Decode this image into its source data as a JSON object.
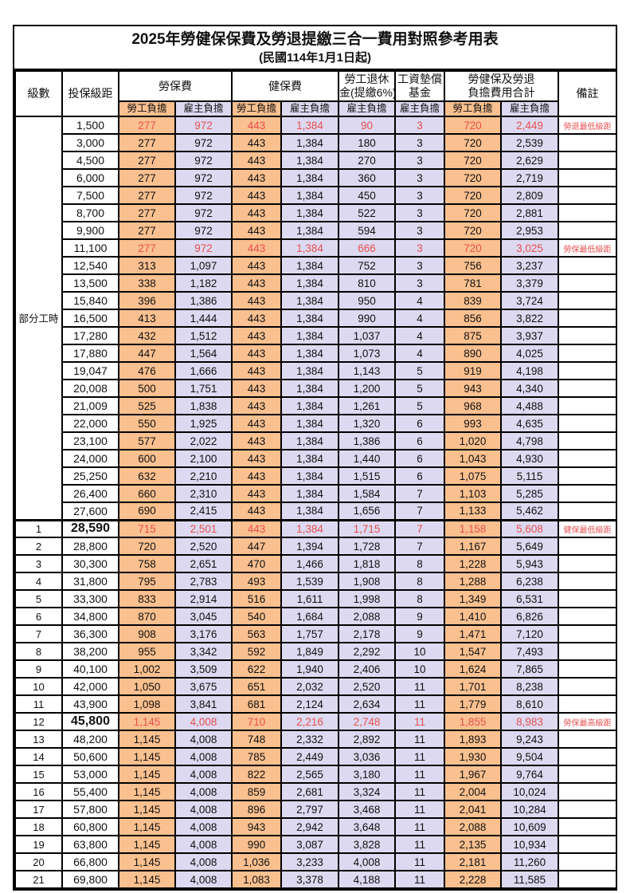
{
  "title": "2025年勞健保保費及勞退提繳三合一費用對照參考用表",
  "subtitle": "(民國114年1月1日起)",
  "header": {
    "level": "級數",
    "bracket": "投保級距",
    "labor_group": "勞保費",
    "health_group": "健保費",
    "pension_line1": "勞工退休",
    "pension_line2": "金(提繳6%)",
    "wagefund_line1": "工資墊償",
    "wagefund_line2": "基金",
    "total_line1": "勞健保及勞退",
    "total_line2": "負擔費用合計",
    "remark": "備註",
    "employee_label": "勞工負擔",
    "employer_label": "雇主負擔"
  },
  "colors": {
    "employee_bg": "#FAC08F",
    "employer_bg": "#DCD9F0",
    "highlight_red": "#E85050",
    "border": "#000000"
  },
  "part_time_label": "部分工時",
  "column_keys": [
    "labor_employee",
    "labor_employer",
    "health_employee",
    "health_employer",
    "pension_employer",
    "wagefund_employer",
    "total_employee",
    "total_employer"
  ],
  "rows": [
    {
      "level": "",
      "bracket": "1,500",
      "values": [
        "277",
        "972",
        "443",
        "1,384",
        "90",
        "3",
        "720",
        "2,449"
      ],
      "remark": "勞退最低級距",
      "red": true,
      "bold": false,
      "thick_top": false
    },
    {
      "level": "",
      "bracket": "3,000",
      "values": [
        "277",
        "972",
        "443",
        "1,384",
        "180",
        "3",
        "720",
        "2,539"
      ],
      "remark": "",
      "red": false,
      "bold": false,
      "thick_top": false
    },
    {
      "level": "",
      "bracket": "4,500",
      "values": [
        "277",
        "972",
        "443",
        "1,384",
        "270",
        "3",
        "720",
        "2,629"
      ],
      "remark": "",
      "red": false,
      "bold": false,
      "thick_top": false
    },
    {
      "level": "",
      "bracket": "6,000",
      "values": [
        "277",
        "972",
        "443",
        "1,384",
        "360",
        "3",
        "720",
        "2,719"
      ],
      "remark": "",
      "red": false,
      "bold": false,
      "thick_top": false
    },
    {
      "level": "",
      "bracket": "7,500",
      "values": [
        "277",
        "972",
        "443",
        "1,384",
        "450",
        "3",
        "720",
        "2,809"
      ],
      "remark": "",
      "red": false,
      "bold": false,
      "thick_top": false
    },
    {
      "level": "",
      "bracket": "8,700",
      "values": [
        "277",
        "972",
        "443",
        "1,384",
        "522",
        "3",
        "720",
        "2,881"
      ],
      "remark": "",
      "red": false,
      "bold": false,
      "thick_top": false
    },
    {
      "level": "",
      "bracket": "9,900",
      "values": [
        "277",
        "972",
        "443",
        "1,384",
        "594",
        "3",
        "720",
        "2,953"
      ],
      "remark": "",
      "red": false,
      "bold": false,
      "thick_top": false
    },
    {
      "level": "",
      "bracket": "11,100",
      "values": [
        "277",
        "972",
        "443",
        "1,384",
        "666",
        "3",
        "720",
        "3,025"
      ],
      "remark": "勞保最低級距",
      "red": true,
      "bold": false,
      "thick_top": false
    },
    {
      "level": "",
      "bracket": "12,540",
      "values": [
        "313",
        "1,097",
        "443",
        "1,384",
        "752",
        "3",
        "756",
        "3,237"
      ],
      "remark": "",
      "red": false,
      "bold": false,
      "thick_top": false
    },
    {
      "level": "",
      "bracket": "13,500",
      "values": [
        "338",
        "1,182",
        "443",
        "1,384",
        "810",
        "3",
        "781",
        "3,379"
      ],
      "remark": "",
      "red": false,
      "bold": false,
      "thick_top": false
    },
    {
      "level": "",
      "bracket": "15,840",
      "values": [
        "396",
        "1,386",
        "443",
        "1,384",
        "950",
        "4",
        "839",
        "3,724"
      ],
      "remark": "",
      "red": false,
      "bold": false,
      "thick_top": false
    },
    {
      "level": "",
      "bracket": "16,500",
      "values": [
        "413",
        "1,444",
        "443",
        "1,384",
        "990",
        "4",
        "856",
        "3,822"
      ],
      "remark": "",
      "red": false,
      "bold": false,
      "thick_top": false
    },
    {
      "level": "",
      "bracket": "17,280",
      "values": [
        "432",
        "1,512",
        "443",
        "1,384",
        "1,037",
        "4",
        "875",
        "3,937"
      ],
      "remark": "",
      "red": false,
      "bold": false,
      "thick_top": false
    },
    {
      "level": "",
      "bracket": "17,880",
      "values": [
        "447",
        "1,564",
        "443",
        "1,384",
        "1,073",
        "4",
        "890",
        "4,025"
      ],
      "remark": "",
      "red": false,
      "bold": false,
      "thick_top": false
    },
    {
      "level": "",
      "bracket": "19,047",
      "values": [
        "476",
        "1,666",
        "443",
        "1,384",
        "1,143",
        "5",
        "919",
        "4,198"
      ],
      "remark": "",
      "red": false,
      "bold": false,
      "thick_top": false
    },
    {
      "level": "",
      "bracket": "20,008",
      "values": [
        "500",
        "1,751",
        "443",
        "1,384",
        "1,200",
        "5",
        "943",
        "4,340"
      ],
      "remark": "",
      "red": false,
      "bold": false,
      "thick_top": false
    },
    {
      "level": "",
      "bracket": "21,009",
      "values": [
        "525",
        "1,838",
        "443",
        "1,384",
        "1,261",
        "5",
        "968",
        "4,488"
      ],
      "remark": "",
      "red": false,
      "bold": false,
      "thick_top": false
    },
    {
      "level": "",
      "bracket": "22,000",
      "values": [
        "550",
        "1,925",
        "443",
        "1,384",
        "1,320",
        "6",
        "993",
        "4,635"
      ],
      "remark": "",
      "red": false,
      "bold": false,
      "thick_top": false
    },
    {
      "level": "",
      "bracket": "23,100",
      "values": [
        "577",
        "2,022",
        "443",
        "1,384",
        "1,386",
        "6",
        "1,020",
        "4,798"
      ],
      "remark": "",
      "red": false,
      "bold": false,
      "thick_top": false
    },
    {
      "level": "",
      "bracket": "24,000",
      "values": [
        "600",
        "2,100",
        "443",
        "1,384",
        "1,440",
        "6",
        "1,043",
        "4,930"
      ],
      "remark": "",
      "red": false,
      "bold": false,
      "thick_top": false
    },
    {
      "level": "",
      "bracket": "25,250",
      "values": [
        "632",
        "2,210",
        "443",
        "1,384",
        "1,515",
        "6",
        "1,075",
        "5,115"
      ],
      "remark": "",
      "red": false,
      "bold": false,
      "thick_top": false
    },
    {
      "level": "",
      "bracket": "26,400",
      "values": [
        "660",
        "2,310",
        "443",
        "1,384",
        "1,584",
        "7",
        "1,103",
        "5,285"
      ],
      "remark": "",
      "red": false,
      "bold": false,
      "thick_top": false
    },
    {
      "level": "",
      "bracket": "27,600",
      "values": [
        "690",
        "2,415",
        "443",
        "1,384",
        "1,656",
        "7",
        "1,133",
        "5,462"
      ],
      "remark": "",
      "red": false,
      "bold": false,
      "thick_top": false
    },
    {
      "level": "1",
      "bracket": "28,590",
      "values": [
        "715",
        "2,501",
        "443",
        "1,384",
        "1,715",
        "7",
        "1,158",
        "5,608"
      ],
      "remark": "健保最低級距",
      "red": true,
      "bold": true,
      "thick_top": true
    },
    {
      "level": "2",
      "bracket": "28,800",
      "values": [
        "720",
        "2,520",
        "447",
        "1,394",
        "1,728",
        "7",
        "1,167",
        "5,649"
      ],
      "remark": "",
      "red": false,
      "bold": false,
      "thick_top": false
    },
    {
      "level": "3",
      "bracket": "30,300",
      "values": [
        "758",
        "2,651",
        "470",
        "1,466",
        "1,818",
        "8",
        "1,228",
        "5,943"
      ],
      "remark": "",
      "red": false,
      "bold": false,
      "thick_top": false
    },
    {
      "level": "4",
      "bracket": "31,800",
      "values": [
        "795",
        "2,783",
        "493",
        "1,539",
        "1,908",
        "8",
        "1,288",
        "6,238"
      ],
      "remark": "",
      "red": false,
      "bold": false,
      "thick_top": false
    },
    {
      "level": "5",
      "bracket": "33,300",
      "values": [
        "833",
        "2,914",
        "516",
        "1,611",
        "1,998",
        "8",
        "1,349",
        "6,531"
      ],
      "remark": "",
      "red": false,
      "bold": false,
      "thick_top": false
    },
    {
      "level": "6",
      "bracket": "34,800",
      "values": [
        "870",
        "3,045",
        "540",
        "1,684",
        "2,088",
        "9",
        "1,410",
        "6,826"
      ],
      "remark": "",
      "red": false,
      "bold": false,
      "thick_top": false
    },
    {
      "level": "7",
      "bracket": "36,300",
      "values": [
        "908",
        "3,176",
        "563",
        "1,757",
        "2,178",
        "9",
        "1,471",
        "7,120"
      ],
      "remark": "",
      "red": false,
      "bold": false,
      "thick_top": false
    },
    {
      "level": "8",
      "bracket": "38,200",
      "values": [
        "955",
        "3,342",
        "592",
        "1,849",
        "2,292",
        "10",
        "1,547",
        "7,493"
      ],
      "remark": "",
      "red": false,
      "bold": false,
      "thick_top": false
    },
    {
      "level": "9",
      "bracket": "40,100",
      "values": [
        "1,002",
        "3,509",
        "622",
        "1,940",
        "2,406",
        "10",
        "1,624",
        "7,865"
      ],
      "remark": "",
      "red": false,
      "bold": false,
      "thick_top": false
    },
    {
      "level": "10",
      "bracket": "42,000",
      "values": [
        "1,050",
        "3,675",
        "651",
        "2,032",
        "2,520",
        "11",
        "1,701",
        "8,238"
      ],
      "remark": "",
      "red": false,
      "bold": false,
      "thick_top": false
    },
    {
      "level": "11",
      "bracket": "43,900",
      "values": [
        "1,098",
        "3,841",
        "681",
        "2,124",
        "2,634",
        "11",
        "1,779",
        "8,610"
      ],
      "remark": "",
      "red": false,
      "bold": false,
      "thick_top": false
    },
    {
      "level": "12",
      "bracket": "45,800",
      "values": [
        "1,145",
        "4,008",
        "710",
        "2,216",
        "2,748",
        "11",
        "1,855",
        "8,983"
      ],
      "remark": "勞保最高級距",
      "red": true,
      "bold": true,
      "thick_top": false
    },
    {
      "level": "13",
      "bracket": "48,200",
      "values": [
        "1,145",
        "4,008",
        "748",
        "2,332",
        "2,892",
        "11",
        "1,893",
        "9,243"
      ],
      "remark": "",
      "red": false,
      "bold": false,
      "thick_top": false
    },
    {
      "level": "14",
      "bracket": "50,600",
      "values": [
        "1,145",
        "4,008",
        "785",
        "2,449",
        "3,036",
        "11",
        "1,930",
        "9,504"
      ],
      "remark": "",
      "red": false,
      "bold": false,
      "thick_top": false
    },
    {
      "level": "15",
      "bracket": "53,000",
      "values": [
        "1,145",
        "4,008",
        "822",
        "2,565",
        "3,180",
        "11",
        "1,967",
        "9,764"
      ],
      "remark": "",
      "red": false,
      "bold": false,
      "thick_top": false
    },
    {
      "level": "16",
      "bracket": "55,400",
      "values": [
        "1,145",
        "4,008",
        "859",
        "2,681",
        "3,324",
        "11",
        "2,004",
        "10,024"
      ],
      "remark": "",
      "red": false,
      "bold": false,
      "thick_top": false
    },
    {
      "level": "17",
      "bracket": "57,800",
      "values": [
        "1,145",
        "4,008",
        "896",
        "2,797",
        "3,468",
        "11",
        "2,041",
        "10,284"
      ],
      "remark": "",
      "red": false,
      "bold": false,
      "thick_top": false
    },
    {
      "level": "18",
      "bracket": "60,800",
      "values": [
        "1,145",
        "4,008",
        "943",
        "2,942",
        "3,648",
        "11",
        "2,088",
        "10,609"
      ],
      "remark": "",
      "red": false,
      "bold": false,
      "thick_top": false
    },
    {
      "level": "19",
      "bracket": "63,800",
      "values": [
        "1,145",
        "4,008",
        "990",
        "3,087",
        "3,828",
        "11",
        "2,135",
        "10,934"
      ],
      "remark": "",
      "red": false,
      "bold": false,
      "thick_top": false
    },
    {
      "level": "20",
      "bracket": "66,800",
      "values": [
        "1,145",
        "4,008",
        "1,036",
        "3,233",
        "4,008",
        "11",
        "2,181",
        "11,260"
      ],
      "remark": "",
      "red": false,
      "bold": false,
      "thick_top": false
    },
    {
      "level": "21",
      "bracket": "69,800",
      "values": [
        "1,145",
        "4,008",
        "1,083",
        "3,378",
        "4,188",
        "11",
        "2,228",
        "11,585"
      ],
      "remark": "",
      "red": false,
      "bold": false,
      "thick_top": false
    }
  ]
}
